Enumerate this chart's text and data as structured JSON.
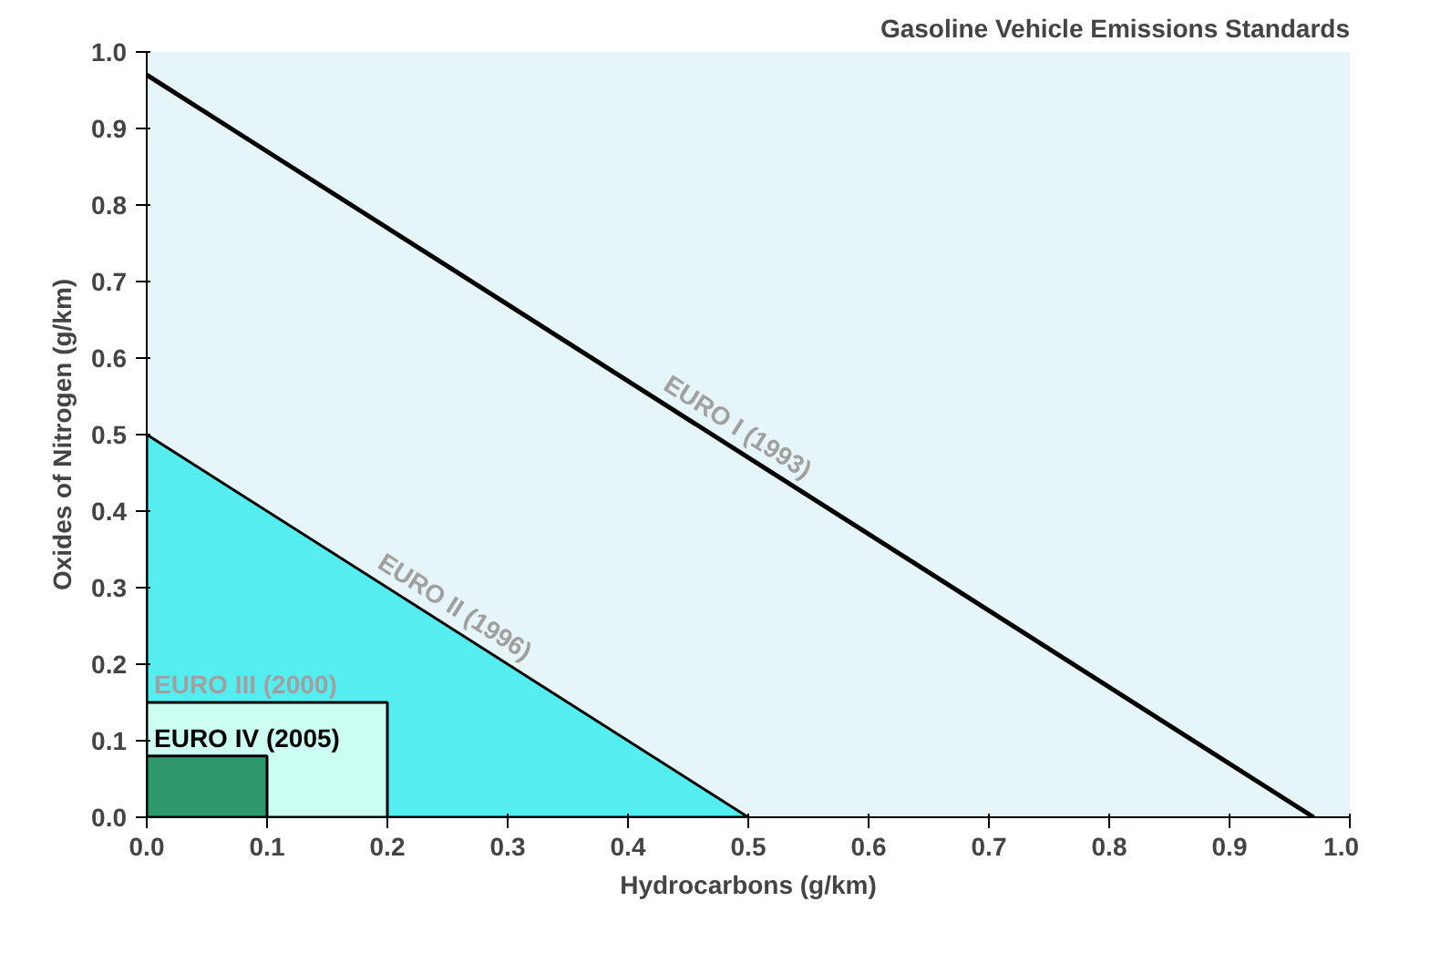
{
  "chart_data": {
    "type": "line",
    "title": "Gasoline Vehicle Emissions Standards",
    "xlabel": "Hydrocarbons (g/km)",
    "ylabel": "Oxides of Nitrogen (g/km)",
    "xlim": [
      0,
      1.0
    ],
    "ylim": [
      0,
      1.0
    ],
    "xticks": [
      {
        "value": 0,
        "label": "0.0"
      },
      0.1,
      0.2,
      0.3,
      0.4,
      0.5,
      0.6,
      0.7,
      0.8,
      0.9,
      {
        "value": 1.0,
        "label": "1.0"
      }
    ],
    "yticks": [
      {
        "value": 0,
        "label": "0.0"
      },
      0.1,
      0.2,
      0.3,
      0.4,
      0.5,
      0.6,
      0.7,
      0.8,
      0.9,
      {
        "value": 1.0,
        "label": "1.0"
      }
    ],
    "grid": false,
    "series": [
      {
        "name": "EURO I (1993)",
        "color": "#000000",
        "x": [
          0,
          0.97
        ],
        "values": [
          0.97,
          0
        ]
      },
      {
        "name": "EURO II (1996)",
        "type": "area",
        "color": "#55eef0",
        "x": [
          0,
          0.5
        ],
        "values": [
          0.5,
          0
        ]
      },
      {
        "name": "EURO III (2000)",
        "type": "area",
        "color": "#ccfff2",
        "x": [
          0,
          0.2
        ],
        "values": [
          0.15,
          0.15
        ]
      },
      {
        "name": "EURO IV (2005)",
        "type": "area",
        "color": "#2e9a6c",
        "x": [
          0,
          0.1
        ],
        "values": [
          0.08,
          0.08
        ]
      }
    ]
  }
}
